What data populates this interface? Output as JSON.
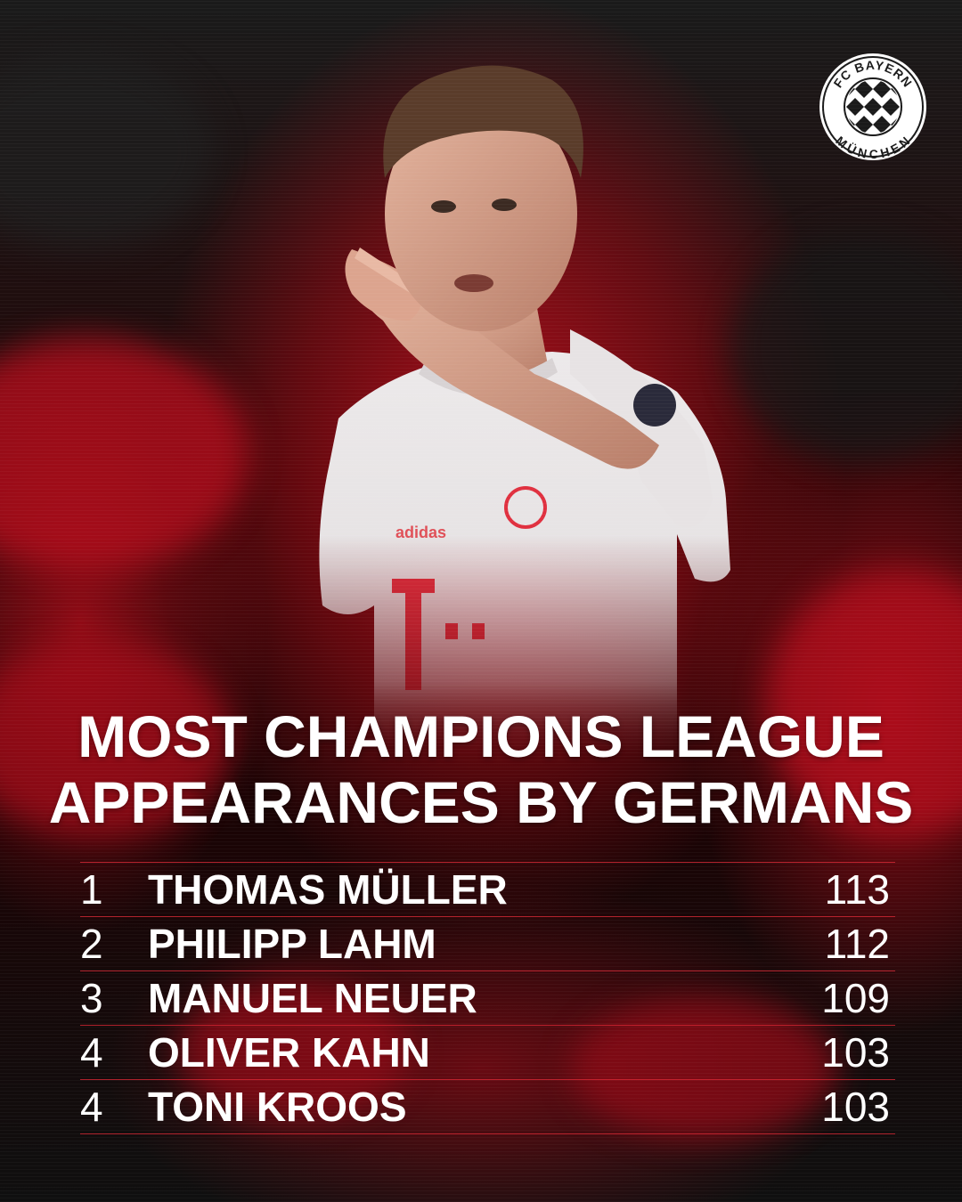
{
  "brand": {
    "logo_text_top": "FC BAYERN",
    "logo_text_bottom": "MÜNCHEN",
    "colors": {
      "primary_red": "#DC052D",
      "dark": "#111111",
      "white": "#FFFFFF",
      "bavarian_blue": "#0066B2"
    }
  },
  "photo": {
    "kit_sponsor_mark": "T",
    "kit_brand": "adidas"
  },
  "headline": {
    "line1": "MOST CHAMPIONS LEAGUE",
    "line2": "APPEARANCES BY GERMANS"
  },
  "ranking": [
    {
      "rank": "1",
      "name": "THOMAS MÜLLER",
      "appearances": "113"
    },
    {
      "rank": "2",
      "name": "PHILIPP LAHM",
      "appearances": "112"
    },
    {
      "rank": "3",
      "name": "MANUEL NEUER",
      "appearances": "109"
    },
    {
      "rank": "4",
      "name": "OLIVER KAHN",
      "appearances": "103"
    },
    {
      "rank": "4",
      "name": "TONI KROOS",
      "appearances": "103"
    }
  ]
}
